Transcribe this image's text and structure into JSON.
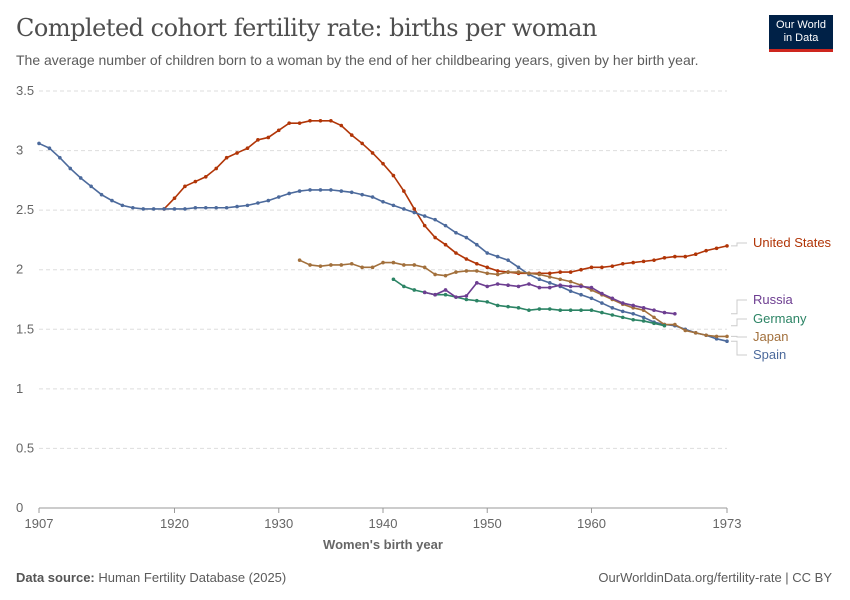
{
  "header": {
    "title": "Completed cohort fertility rate: births per woman",
    "subtitle": "The average number of children born to a woman by the end of her childbearing years, given by her birth year.",
    "logo": "Our World in Data"
  },
  "footer": {
    "source_label": "Data source:",
    "source": "Human Fertility Database (2025)",
    "url": "OurWorldinData.org/fertility-rate | CC BY"
  },
  "chart_data": {
    "type": "line",
    "title": "Completed cohort fertility rate: births per woman",
    "xlabel": "Women's birth year",
    "ylabel": "",
    "xlim": [
      1907,
      1973
    ],
    "ylim": [
      0,
      3.5
    ],
    "xticks": [
      1907,
      1920,
      1930,
      1940,
      1950,
      1960,
      1973
    ],
    "yticks": [
      0,
      0.5,
      1,
      1.5,
      2,
      2.5,
      3,
      3.5
    ],
    "grid": "horizontal dashed",
    "legend": "right, end-of-line labels",
    "series": [
      {
        "name": "United States",
        "color": "#b13507",
        "start": 1919,
        "values": [
          2.51,
          2.6,
          2.7,
          2.74,
          2.78,
          2.85,
          2.94,
          2.98,
          3.02,
          3.09,
          3.11,
          3.17,
          3.23,
          3.23,
          3.25,
          3.25,
          3.25,
          3.21,
          3.13,
          3.06,
          2.98,
          2.89,
          2.79,
          2.66,
          2.51,
          2.37,
          2.27,
          2.21,
          2.14,
          2.09,
          2.05,
          2.02,
          1.99,
          1.98,
          1.97,
          1.97,
          1.97,
          1.97,
          1.98,
          1.98,
          2.0,
          2.02,
          2.02,
          2.03,
          2.05,
          2.06,
          2.07,
          2.08,
          2.1,
          2.11,
          2.11,
          2.13,
          2.16,
          2.18,
          2.2
        ]
      },
      {
        "name": "Spain",
        "color": "#4c6a9c",
        "start": 1907,
        "values": [
          3.06,
          3.02,
          2.94,
          2.85,
          2.77,
          2.7,
          2.63,
          2.58,
          2.54,
          2.52,
          2.51,
          2.51,
          2.51,
          2.51,
          2.51,
          2.52,
          2.52,
          2.52,
          2.52,
          2.53,
          2.54,
          2.56,
          2.58,
          2.61,
          2.64,
          2.66,
          2.67,
          2.67,
          2.67,
          2.66,
          2.65,
          2.63,
          2.61,
          2.57,
          2.54,
          2.51,
          2.48,
          2.45,
          2.42,
          2.37,
          2.31,
          2.27,
          2.21,
          2.14,
          2.11,
          2.08,
          2.02,
          1.96,
          1.92,
          1.89,
          1.86,
          1.82,
          1.79,
          1.76,
          1.72,
          1.68,
          1.65,
          1.63,
          1.6,
          1.56,
          1.54,
          1.53,
          1.5,
          1.47,
          1.45,
          1.42,
          1.4
        ]
      },
      {
        "name": "Japan",
        "color": "#a2703c",
        "start": 1932,
        "values": [
          2.08,
          2.04,
          2.03,
          2.04,
          2.04,
          2.05,
          2.02,
          2.02,
          2.06,
          2.06,
          2.04,
          2.04,
          2.02,
          1.96,
          1.95,
          1.98,
          1.99,
          1.99,
          1.97,
          1.96,
          1.98,
          1.98,
          1.97,
          1.96,
          1.94,
          1.92,
          1.9,
          1.87,
          1.83,
          1.79,
          1.75,
          1.71,
          1.68,
          1.66,
          1.6,
          1.54,
          1.54,
          1.49,
          1.47,
          1.45,
          1.44,
          1.44
        ]
      },
      {
        "name": "Germany",
        "color": "#2c8465",
        "start": 1941,
        "values": [
          1.92,
          1.86,
          1.83,
          1.81,
          1.79,
          1.79,
          1.77,
          1.75,
          1.74,
          1.73,
          1.7,
          1.69,
          1.68,
          1.66,
          1.67,
          1.67,
          1.66,
          1.66,
          1.66,
          1.66,
          1.64,
          1.62,
          1.6,
          1.58,
          1.57,
          1.55,
          1.53
        ]
      },
      {
        "name": "Russia",
        "color": "#6d3e91",
        "start": 1944,
        "values": [
          1.81,
          1.79,
          1.83,
          1.77,
          1.78,
          1.89,
          1.86,
          1.88,
          1.87,
          1.86,
          1.88,
          1.85,
          1.85,
          1.87,
          1.86,
          1.86,
          1.85,
          1.8,
          1.76,
          1.72,
          1.7,
          1.68,
          1.66,
          1.64,
          1.63
        ]
      }
    ]
  }
}
